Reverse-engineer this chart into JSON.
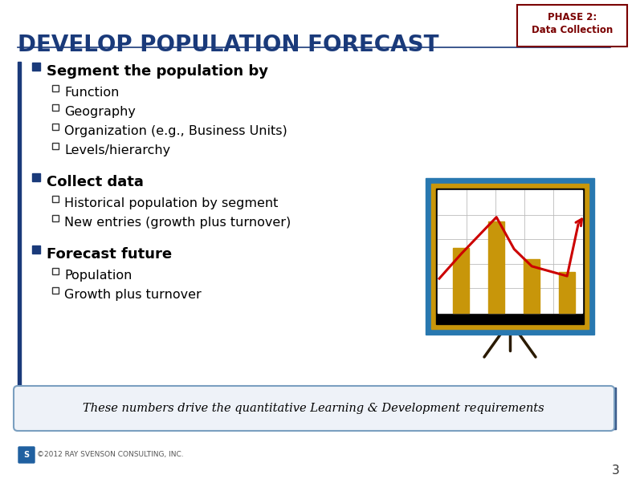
{
  "title": "DEVELOP POPULATION FORECAST",
  "title_color": "#1a3a7a",
  "title_fontsize": 20,
  "phase_label_line1": "PHASE 2:",
  "phase_label_line2": "Data Collection",
  "phase_color": "#7a0000",
  "phase_box_color": "#7a0000",
  "bg_color": "#ffffff",
  "left_bar_color": "#1a3a7a",
  "bullet_color": "#1a3a7a",
  "bullet1": "Segment the population by",
  "sub1": [
    "Function",
    "Geography",
    "Organization (e.g., Business Units)",
    "Levels/hierarchy"
  ],
  "bullet2": "Collect data",
  "sub2": [
    "Historical population by segment",
    "New entries (growth plus turnover)"
  ],
  "bullet3": "Forecast future",
  "sub3": [
    "Population",
    "Growth plus turnover"
  ],
  "footer_text": "These numbers drive the quantitative Learning & Development requirements",
  "footer_bg": "#eef2f8",
  "footer_border": "#7a9fc0",
  "footer_border2": "#3a5a8a",
  "footer_text_color": "#000000",
  "copyright_text": "©2012 RAY SVENSON CONSULTING, INC.",
  "page_number": "3",
  "bullet_fontsize": 13,
  "sub_fontsize": 11.5,
  "header_line_color": "#1a3a7a",
  "chart_outer_color": "#2878b0",
  "chart_gold_color": "#c8960a",
  "chart_bar_color": "#c8960a",
  "chart_line_color": "#cc0000"
}
